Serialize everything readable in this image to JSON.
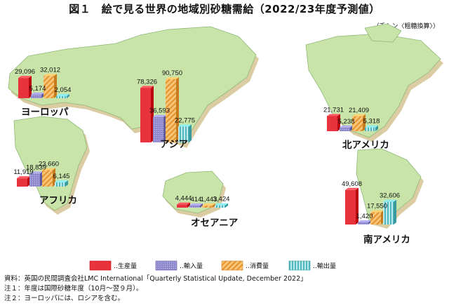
{
  "title": "図１　絵で見る世界の地域別砂糖需給（2022/23年度予測値）",
  "unit": "（千トン〈粗糖換算〉）",
  "notes": [
    "資料：英国の民間調査会社LMC International「Quarterly Statistical Update, December 2022」",
    "注１：年度は国際砂糖年度（10月～翌９月）。",
    "注２：ヨーロッパには、ロシアを含む。"
  ],
  "colors": {
    "production": "#e8323c",
    "imports": "#8c86cc",
    "consumption": "#f3a94a",
    "exports": "#66c8cc",
    "land": "#c9e4a8",
    "land_shadow": "#d8c79a"
  },
  "chart_data": {
    "type": "bar",
    "title": "図１　絵で見る世界の地域別砂糖需給（2022/23年度予測値）",
    "unit": "千トン〈粗糖換算〉",
    "series_names": [
      "生産量",
      "輸入量",
      "消費量",
      "輸出量"
    ],
    "regions": [
      {
        "name": "ヨーロッパ",
        "values": [
          29096,
          5174,
          32012,
          2054
        ]
      },
      {
        "name": "アフリカ",
        "values": [
          11919,
          18839,
          23660,
          6145
        ]
      },
      {
        "name": "アジア",
        "values": [
          78326,
          36593,
          90750,
          22775
        ]
      },
      {
        "name": "オセアニア",
        "values": [
          4444,
          414,
          1443,
          3424
        ]
      },
      {
        "name": "北アメリカ",
        "values": [
          21731,
          5238,
          21409,
          5318
        ]
      },
      {
        "name": "南アメリカ",
        "values": [
          49608,
          1420,
          17550,
          32606
        ]
      }
    ]
  }
}
